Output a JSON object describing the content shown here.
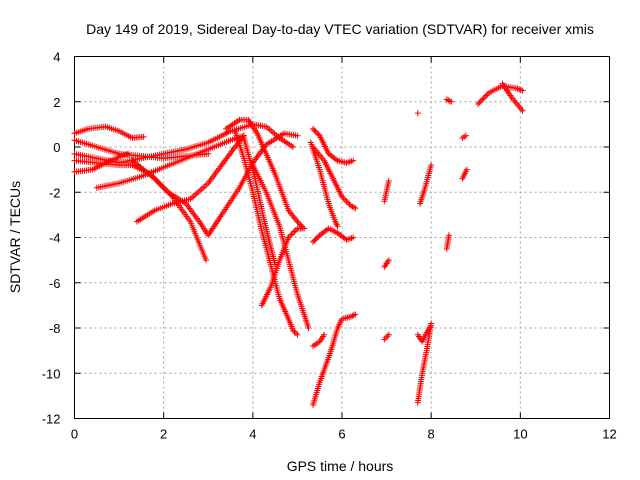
{
  "chart_data": {
    "type": "scatter",
    "title": "Day 149 of 2019, Sidereal Day-to-day VTEC variation (SDTVAR) for receiver xmis",
    "xlabel": "GPS time / hours",
    "ylabel": "SDTVAR / TECUs",
    "xlim": [
      0,
      12
    ],
    "ylim": [
      -12,
      4
    ],
    "xticks": [
      0,
      2,
      4,
      6,
      8,
      10,
      12
    ],
    "yticks": [
      4,
      2,
      0,
      -2,
      -4,
      -6,
      -8,
      -10,
      -12
    ],
    "grid": true,
    "marker": "+",
    "color": "#ff0000",
    "tracks": [
      {
        "name": "track-1",
        "points": [
          [
            0.0,
            0.6
          ],
          [
            0.3,
            0.8
          ],
          [
            0.7,
            0.9
          ],
          [
            1.0,
            0.7
          ],
          [
            1.3,
            0.4
          ],
          [
            1.55,
            0.45
          ]
        ]
      },
      {
        "name": "track-2",
        "points": [
          [
            0.0,
            0.3
          ],
          [
            0.5,
            0.0
          ],
          [
            1.0,
            -0.3
          ],
          [
            1.5,
            -0.4
          ],
          [
            2.0,
            -0.5
          ],
          [
            2.5,
            -0.4
          ],
          [
            3.0,
            -0.3
          ]
        ]
      },
      {
        "name": "track-3",
        "points": [
          [
            0.0,
            -0.3
          ],
          [
            0.5,
            -0.5
          ],
          [
            1.0,
            -0.7
          ],
          [
            1.5,
            -0.5
          ],
          [
            2.0,
            -0.3
          ],
          [
            2.5,
            -0.1
          ],
          [
            3.0,
            0.2
          ],
          [
            3.5,
            0.7
          ],
          [
            4.0,
            1.0
          ],
          [
            4.3,
            0.9
          ],
          [
            4.6,
            0.4
          ],
          [
            4.9,
            0.0
          ]
        ]
      },
      {
        "name": "track-4",
        "points": [
          [
            0.0,
            -0.6
          ],
          [
            0.5,
            -0.7
          ],
          [
            1.0,
            -0.8
          ],
          [
            1.3,
            -0.8
          ]
        ]
      },
      {
        "name": "track-5",
        "points": [
          [
            0.0,
            -1.1
          ],
          [
            0.4,
            -1.0
          ],
          [
            0.8,
            -0.6
          ],
          [
            1.2,
            -0.3
          ]
        ]
      },
      {
        "name": "track-6",
        "points": [
          [
            0.5,
            -1.8
          ],
          [
            1.0,
            -1.6
          ],
          [
            1.5,
            -1.3
          ],
          [
            2.0,
            -0.9
          ],
          [
            2.5,
            -0.5
          ],
          [
            3.0,
            -0.1
          ],
          [
            3.5,
            0.3
          ],
          [
            3.8,
            0.5
          ]
        ]
      },
      {
        "name": "track-7",
        "points": [
          [
            1.3,
            -0.8
          ],
          [
            1.7,
            -1.2
          ],
          [
            2.1,
            -2.0
          ],
          [
            2.5,
            -2.5
          ],
          [
            2.8,
            -3.3
          ],
          [
            3.0,
            -3.9
          ],
          [
            3.3,
            -3.0
          ],
          [
            3.7,
            -1.8
          ],
          [
            4.0,
            -0.7
          ],
          [
            4.3,
            0.1
          ],
          [
            4.7,
            0.6
          ],
          [
            5.0,
            0.5
          ]
        ]
      },
      {
        "name": "track-8",
        "points": [
          [
            1.3,
            -0.6
          ],
          [
            1.8,
            -1.4
          ],
          [
            2.2,
            -2.2
          ],
          [
            2.6,
            -3.3
          ],
          [
            2.95,
            -5.0
          ]
        ]
      },
      {
        "name": "track-9",
        "points": [
          [
            1.4,
            -3.3
          ],
          [
            1.8,
            -2.8
          ],
          [
            2.2,
            -2.5
          ],
          [
            2.6,
            -2.3
          ],
          [
            3.0,
            -1.6
          ],
          [
            3.3,
            -0.8
          ],
          [
            3.6,
            0.0
          ],
          [
            3.8,
            0.5
          ]
        ]
      },
      {
        "name": "track-10",
        "points": [
          [
            3.4,
            0.8
          ],
          [
            3.7,
            1.2
          ],
          [
            3.9,
            1.2
          ],
          [
            4.1,
            0.6
          ],
          [
            4.3,
            -0.3
          ],
          [
            4.5,
            -1.2
          ],
          [
            4.8,
            -2.8
          ],
          [
            5.0,
            -3.3
          ],
          [
            5.15,
            -3.6
          ]
        ]
      },
      {
        "name": "track-11",
        "points": [
          [
            3.6,
            0.7
          ],
          [
            3.8,
            -0.5
          ],
          [
            4.0,
            -2.0
          ],
          [
            4.2,
            -3.7
          ],
          [
            4.4,
            -5.2
          ],
          [
            4.6,
            -6.7
          ],
          [
            4.8,
            -7.6
          ],
          [
            4.9,
            -8.1
          ],
          [
            5.0,
            -8.3
          ]
        ]
      },
      {
        "name": "track-12",
        "points": [
          [
            3.8,
            0.4
          ],
          [
            4.05,
            -1.4
          ],
          [
            4.25,
            -3.2
          ],
          [
            4.5,
            -5.2
          ]
        ]
      },
      {
        "name": "track-13",
        "points": [
          [
            4.0,
            -0.8
          ],
          [
            4.3,
            -2.0
          ],
          [
            4.6,
            -3.5
          ],
          [
            4.8,
            -5.0
          ],
          [
            5.0,
            -6.5
          ],
          [
            5.15,
            -7.4
          ],
          [
            5.25,
            -8.0
          ]
        ]
      },
      {
        "name": "track-14",
        "points": [
          [
            4.2,
            -7.0
          ],
          [
            4.4,
            -6.2
          ],
          [
            4.6,
            -5.0
          ],
          [
            4.8,
            -4.0
          ],
          [
            5.0,
            -3.6
          ],
          [
            5.1,
            -3.6
          ]
        ]
      },
      {
        "name": "track-15",
        "points": [
          [
            5.35,
            0.8
          ],
          [
            5.5,
            0.5
          ],
          [
            5.7,
            -0.3
          ],
          [
            5.9,
            -0.6
          ],
          [
            6.1,
            -0.7
          ],
          [
            6.25,
            -0.6
          ]
        ]
      },
      {
        "name": "track-16",
        "points": [
          [
            5.3,
            0.2
          ],
          [
            5.5,
            -1.0
          ],
          [
            5.7,
            -2.5
          ],
          [
            5.85,
            -3.3
          ],
          [
            5.9,
            -3.5
          ]
        ]
      },
      {
        "name": "track-17",
        "points": [
          [
            5.35,
            0.0
          ],
          [
            5.6,
            -0.6
          ],
          [
            5.8,
            -1.4
          ],
          [
            6.0,
            -2.2
          ],
          [
            6.2,
            -2.6
          ],
          [
            6.3,
            -2.7
          ]
        ]
      },
      {
        "name": "track-18",
        "points": [
          [
            5.35,
            -4.2
          ],
          [
            5.5,
            -3.9
          ],
          [
            5.7,
            -3.6
          ],
          [
            5.9,
            -3.8
          ],
          [
            6.1,
            -4.1
          ],
          [
            6.25,
            -4.0
          ]
        ]
      },
      {
        "name": "track-19",
        "points": [
          [
            5.35,
            -8.8
          ],
          [
            5.5,
            -8.6
          ],
          [
            5.6,
            -8.3
          ]
        ]
      },
      {
        "name": "track-20",
        "points": [
          [
            5.35,
            -11.4
          ],
          [
            5.5,
            -10.4
          ],
          [
            5.7,
            -9.3
          ],
          [
            5.8,
            -8.7
          ],
          [
            5.9,
            -8.0
          ],
          [
            6.0,
            -7.6
          ],
          [
            6.2,
            -7.5
          ],
          [
            6.3,
            -7.4
          ]
        ]
      },
      {
        "name": "track-21",
        "points": [
          [
            6.95,
            -2.4
          ],
          [
            7.05,
            -1.5
          ]
        ]
      },
      {
        "name": "track-22",
        "points": [
          [
            6.95,
            -5.3
          ],
          [
            7.05,
            -5.0
          ]
        ]
      },
      {
        "name": "track-23",
        "points": [
          [
            6.95,
            -8.5
          ],
          [
            7.05,
            -8.3
          ]
        ]
      },
      {
        "name": "track-24",
        "points": [
          [
            7.75,
            -2.5
          ],
          [
            7.85,
            -1.9
          ],
          [
            8.0,
            -0.8
          ]
        ]
      },
      {
        "name": "track-25",
        "points": [
          [
            7.7,
            -11.3
          ],
          [
            7.8,
            -10.0
          ],
          [
            7.9,
            -9.0
          ],
          [
            8.0,
            -7.8
          ]
        ]
      },
      {
        "name": "track-26",
        "points": [
          [
            7.7,
            -8.3
          ],
          [
            7.8,
            -8.6
          ],
          [
            7.9,
            -8.2
          ],
          [
            8.0,
            -7.9
          ]
        ]
      },
      {
        "name": "track-27",
        "points": [
          [
            8.35,
            -4.5
          ],
          [
            8.4,
            -3.9
          ]
        ]
      },
      {
        "name": "track-28",
        "points": [
          [
            8.35,
            2.1
          ],
          [
            8.45,
            2.0
          ]
        ]
      },
      {
        "name": "track-29",
        "points": [
          [
            8.7,
            0.4
          ],
          [
            8.78,
            0.5
          ]
        ]
      },
      {
        "name": "track-30",
        "points": [
          [
            8.7,
            -1.4
          ],
          [
            8.8,
            -1.0
          ]
        ]
      },
      {
        "name": "track-31",
        "points": [
          [
            9.05,
            1.9
          ],
          [
            9.3,
            2.4
          ],
          [
            9.6,
            2.7
          ],
          [
            9.9,
            2.6
          ],
          [
            10.05,
            2.5
          ]
        ]
      },
      {
        "name": "track-32",
        "points": [
          [
            9.6,
            2.8
          ],
          [
            9.8,
            2.2
          ],
          [
            10.05,
            1.6
          ]
        ]
      }
    ],
    "isolated_points": [
      [
        7.7,
        1.5
      ]
    ]
  }
}
